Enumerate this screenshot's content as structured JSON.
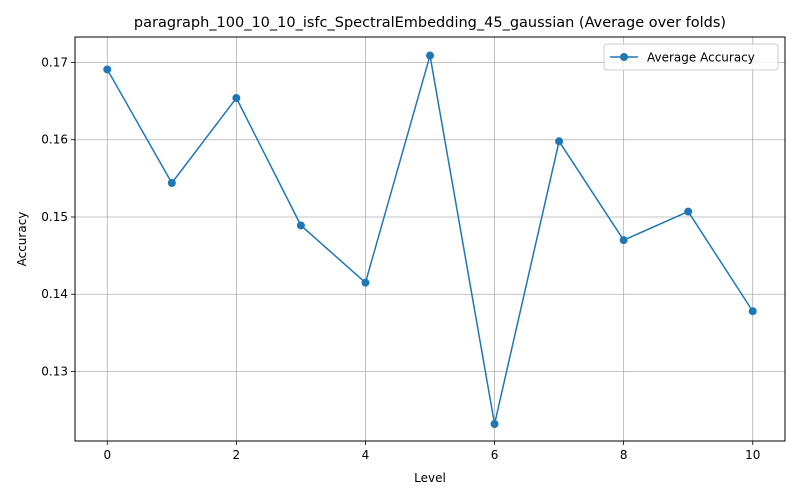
{
  "chart_data": {
    "type": "line",
    "title": "paragraph_100_10_10_isfc_SpectralEmbedding_45_gaussian (Average over folds)",
    "xlabel": "Level",
    "ylabel": "Accuracy",
    "x": [
      0,
      1,
      2,
      3,
      4,
      5,
      6,
      7,
      8,
      9,
      10
    ],
    "series": [
      {
        "name": "Average Accuracy",
        "values": [
          0.1691,
          0.1544,
          0.1654,
          0.1489,
          0.1415,
          0.1709,
          0.1232,
          0.1598,
          0.147,
          0.1507,
          0.1378
        ]
      }
    ],
    "xlim": [
      -0.5,
      10.5
    ],
    "ylim": [
      0.121,
      0.1733
    ],
    "x_ticks": [
      0,
      2,
      4,
      6,
      8,
      10
    ],
    "y_ticks": [
      0.13,
      0.14,
      0.15,
      0.16,
      0.17
    ],
    "x_tick_labels": [
      "0",
      "2",
      "4",
      "6",
      "8",
      "10"
    ],
    "y_tick_labels": [
      "0.13",
      "0.14",
      "0.15",
      "0.16",
      "0.17"
    ],
    "grid": true,
    "legend_position": "top-right",
    "line_color": "#1f77b4",
    "grid_color": "#b0b0b0"
  }
}
